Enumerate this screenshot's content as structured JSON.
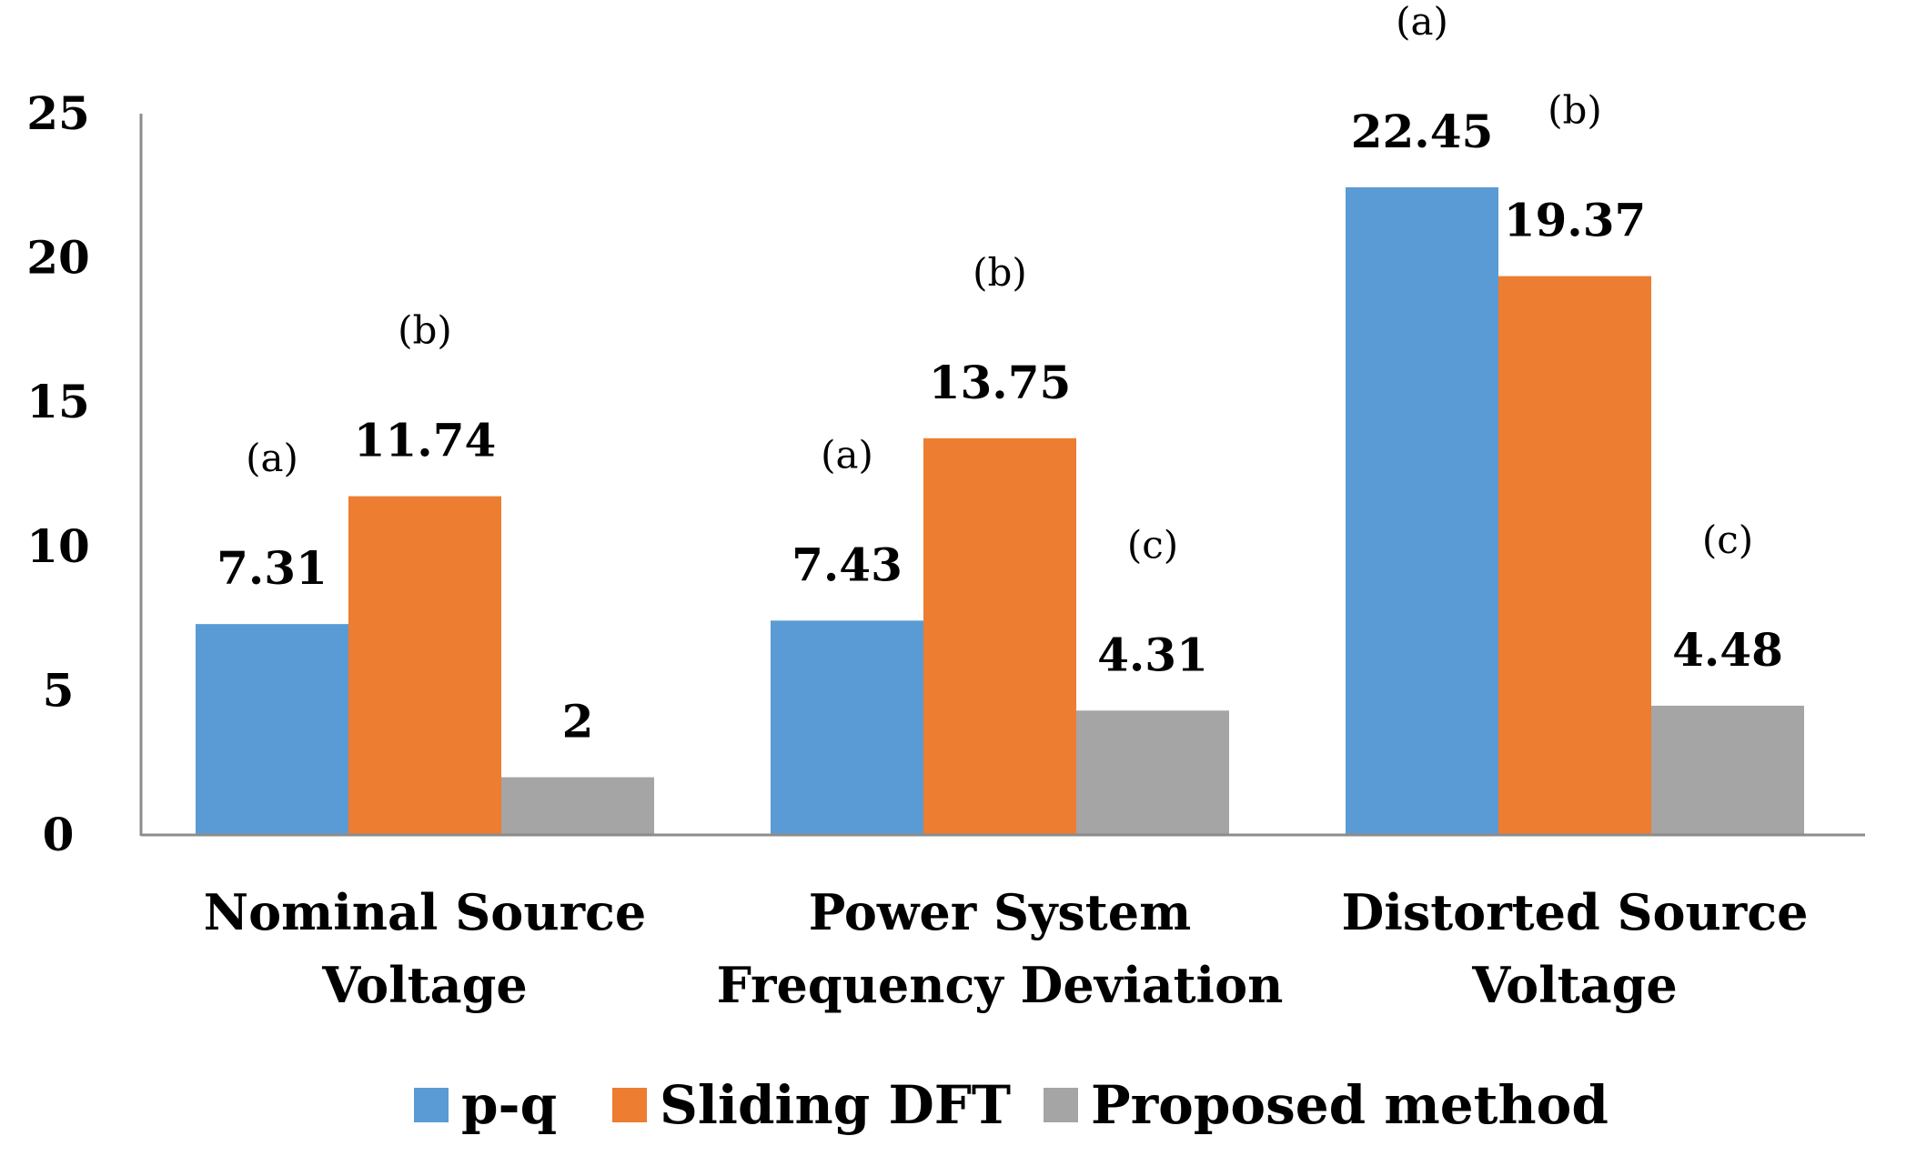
{
  "chart_data": {
    "type": "bar",
    "title": "",
    "xlabel": "",
    "ylabel": "",
    "ylim": [
      0,
      25
    ],
    "yticks": [
      0,
      5,
      10,
      15,
      20,
      25
    ],
    "grid": false,
    "legend_position": "bottom",
    "categories": [
      [
        "Nominal Source",
        "Voltage"
      ],
      [
        "Power System",
        "Frequency Deviation"
      ],
      [
        "Distorted Source",
        "Voltage"
      ]
    ],
    "series": [
      {
        "name": "p-q",
        "color": "#5b9bd5",
        "values": [
          7.31,
          7.43,
          22.45
        ],
        "labels": [
          "7.31",
          "7.43",
          "22.45"
        ]
      },
      {
        "name": "Sliding DFT",
        "color": "#ed7d31",
        "values": [
          11.74,
          13.75,
          19.37
        ],
        "labels": [
          "11.74",
          "13.75",
          "19.37"
        ]
      },
      {
        "name": "Proposed method",
        "color": "#a5a5a5",
        "values": [
          2,
          4.31,
          4.48
        ],
        "labels": [
          "2",
          "4.31",
          "4.48"
        ]
      }
    ],
    "annotations": [
      {
        "text": "(a)",
        "category": 0,
        "series": 0
      },
      {
        "text": "(b)",
        "category": 0,
        "series": 1
      },
      {
        "text": "(a)",
        "category": 1,
        "series": 0
      },
      {
        "text": "(b)",
        "category": 1,
        "series": 1
      },
      {
        "text": "(c)",
        "category": 1,
        "series": 2
      },
      {
        "text": "(a)",
        "category": 2,
        "series": 0
      },
      {
        "text": "(b)",
        "category": 2,
        "series": 1
      },
      {
        "text": "(c)",
        "category": 2,
        "series": 2
      }
    ]
  }
}
